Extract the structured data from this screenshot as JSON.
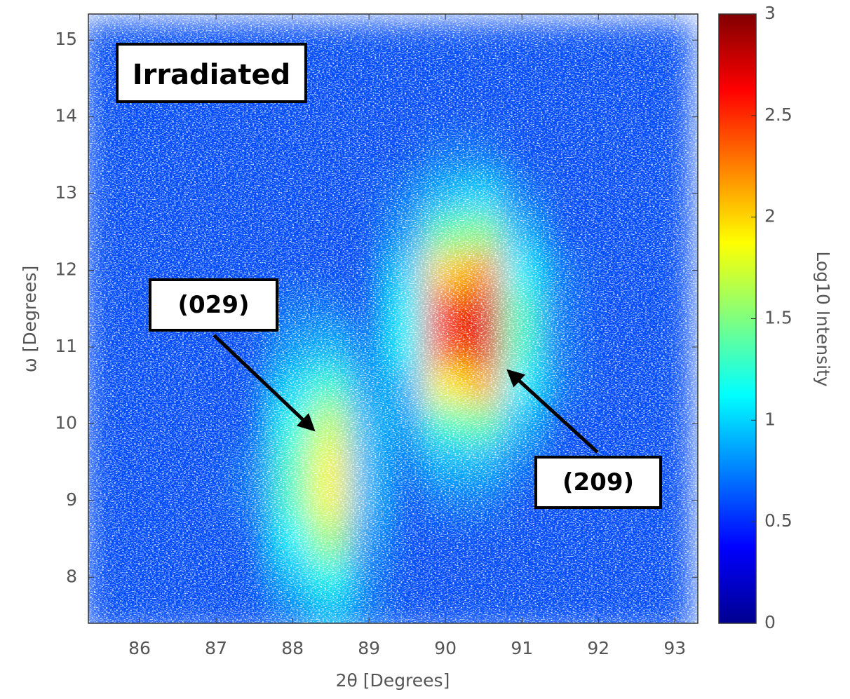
{
  "chart_data": {
    "type": "heatmap",
    "x": [
      85.5,
      86,
      86.5,
      87,
      87.5,
      88,
      88.5,
      89,
      89.5,
      90,
      90.5,
      91,
      91.5,
      92,
      92.5,
      93
    ],
    "y": [
      7.5,
      8,
      8.5,
      9,
      9.5,
      10,
      10.5,
      11,
      11.5,
      12,
      12.5,
      13,
      13.5,
      14,
      14.5,
      15
    ],
    "z": [
      [
        0.6,
        0.6,
        0.6,
        0.6,
        0.6,
        0.7,
        0.9,
        0.7,
        0.6,
        0.6,
        0.6,
        0.6,
        0.6,
        0.6,
        0.6,
        0.6
      ],
      [
        0.6,
        0.6,
        0.6,
        0.6,
        0.6,
        0.9,
        1.2,
        0.7,
        0.6,
        0.6,
        0.6,
        0.6,
        0.6,
        0.6,
        0.6,
        0.6
      ],
      [
        0.6,
        0.6,
        0.6,
        0.6,
        0.6,
        1.1,
        1.6,
        0.8,
        0.6,
        0.6,
        0.6,
        0.6,
        0.6,
        0.6,
        0.6,
        0.6
      ],
      [
        0.6,
        0.6,
        0.6,
        0.6,
        0.7,
        1.3,
        1.9,
        0.9,
        0.6,
        0.7,
        0.7,
        0.6,
        0.6,
        0.6,
        0.6,
        0.6
      ],
      [
        0.6,
        0.6,
        0.6,
        0.6,
        0.7,
        1.3,
        1.9,
        0.9,
        0.7,
        0.9,
        0.9,
        0.7,
        0.6,
        0.6,
        0.6,
        0.6
      ],
      [
        0.6,
        0.6,
        0.6,
        0.6,
        0.6,
        1.2,
        1.7,
        0.9,
        0.8,
        1.3,
        1.4,
        0.9,
        0.6,
        0.6,
        0.6,
        0.6
      ],
      [
        0.6,
        0.6,
        0.6,
        0.6,
        0.6,
        1.0,
        1.3,
        0.8,
        0.9,
        1.9,
        2.1,
        1.1,
        0.7,
        0.6,
        0.6,
        0.6
      ],
      [
        0.6,
        0.6,
        0.6,
        0.6,
        0.6,
        0.8,
        0.9,
        0.7,
        1.1,
        2.4,
        2.7,
        1.3,
        0.7,
        0.6,
        0.6,
        0.6
      ],
      [
        0.6,
        0.6,
        0.6,
        0.6,
        0.6,
        0.7,
        0.7,
        0.6,
        1.1,
        2.5,
        2.7,
        1.3,
        0.7,
        0.6,
        0.6,
        0.6
      ],
      [
        0.6,
        0.6,
        0.6,
        0.6,
        0.6,
        0.6,
        0.6,
        0.6,
        1.0,
        2.0,
        2.2,
        1.1,
        0.7,
        0.6,
        0.6,
        0.6
      ],
      [
        0.6,
        0.6,
        0.6,
        0.6,
        0.6,
        0.6,
        0.6,
        0.6,
        0.8,
        1.4,
        1.5,
        0.9,
        0.6,
        0.6,
        0.6,
        0.6
      ],
      [
        0.6,
        0.6,
        0.6,
        0.6,
        0.6,
        0.6,
        0.6,
        0.6,
        0.7,
        0.9,
        1.0,
        0.7,
        0.6,
        0.6,
        0.6,
        0.6
      ],
      [
        0.6,
        0.6,
        0.6,
        0.6,
        0.6,
        0.6,
        0.6,
        0.6,
        0.6,
        0.7,
        0.7,
        0.6,
        0.6,
        0.6,
        0.6,
        0.6
      ],
      [
        0.6,
        0.6,
        0.6,
        0.6,
        0.6,
        0.6,
        0.6,
        0.6,
        0.6,
        0.6,
        0.6,
        0.6,
        0.6,
        0.6,
        0.6,
        0.6
      ],
      [
        0.6,
        0.6,
        0.6,
        0.6,
        0.6,
        0.6,
        0.6,
        0.6,
        0.6,
        0.6,
        0.6,
        0.6,
        0.6,
        0.6,
        0.6,
        0.6
      ],
      [
        0.6,
        0.6,
        0.6,
        0.6,
        0.6,
        0.6,
        0.6,
        0.6,
        0.6,
        0.6,
        0.6,
        0.6,
        0.6,
        0.6,
        0.6,
        0.6
      ]
    ],
    "xlim": [
      85.33,
      93.3
    ],
    "ylim": [
      7.4,
      15.34
    ],
    "xticks": [
      86,
      87,
      88,
      89,
      90,
      91,
      92,
      93
    ],
    "yticks": [
      8,
      9,
      10,
      11,
      12,
      13,
      14,
      15
    ],
    "xlabel": "2θ [Degrees]",
    "ylabel": "ω [Degrees]",
    "colorbar": {
      "label": "Log10 Intensity",
      "lim": [
        0,
        3
      ],
      "ticks": [
        0,
        0.5,
        1,
        1.5,
        2,
        2.5,
        3
      ],
      "colormap": "jet"
    },
    "annotations": [
      {
        "text": "Irradiated"
      },
      {
        "text": "(029)"
      },
      {
        "text": "(209)"
      }
    ]
  }
}
